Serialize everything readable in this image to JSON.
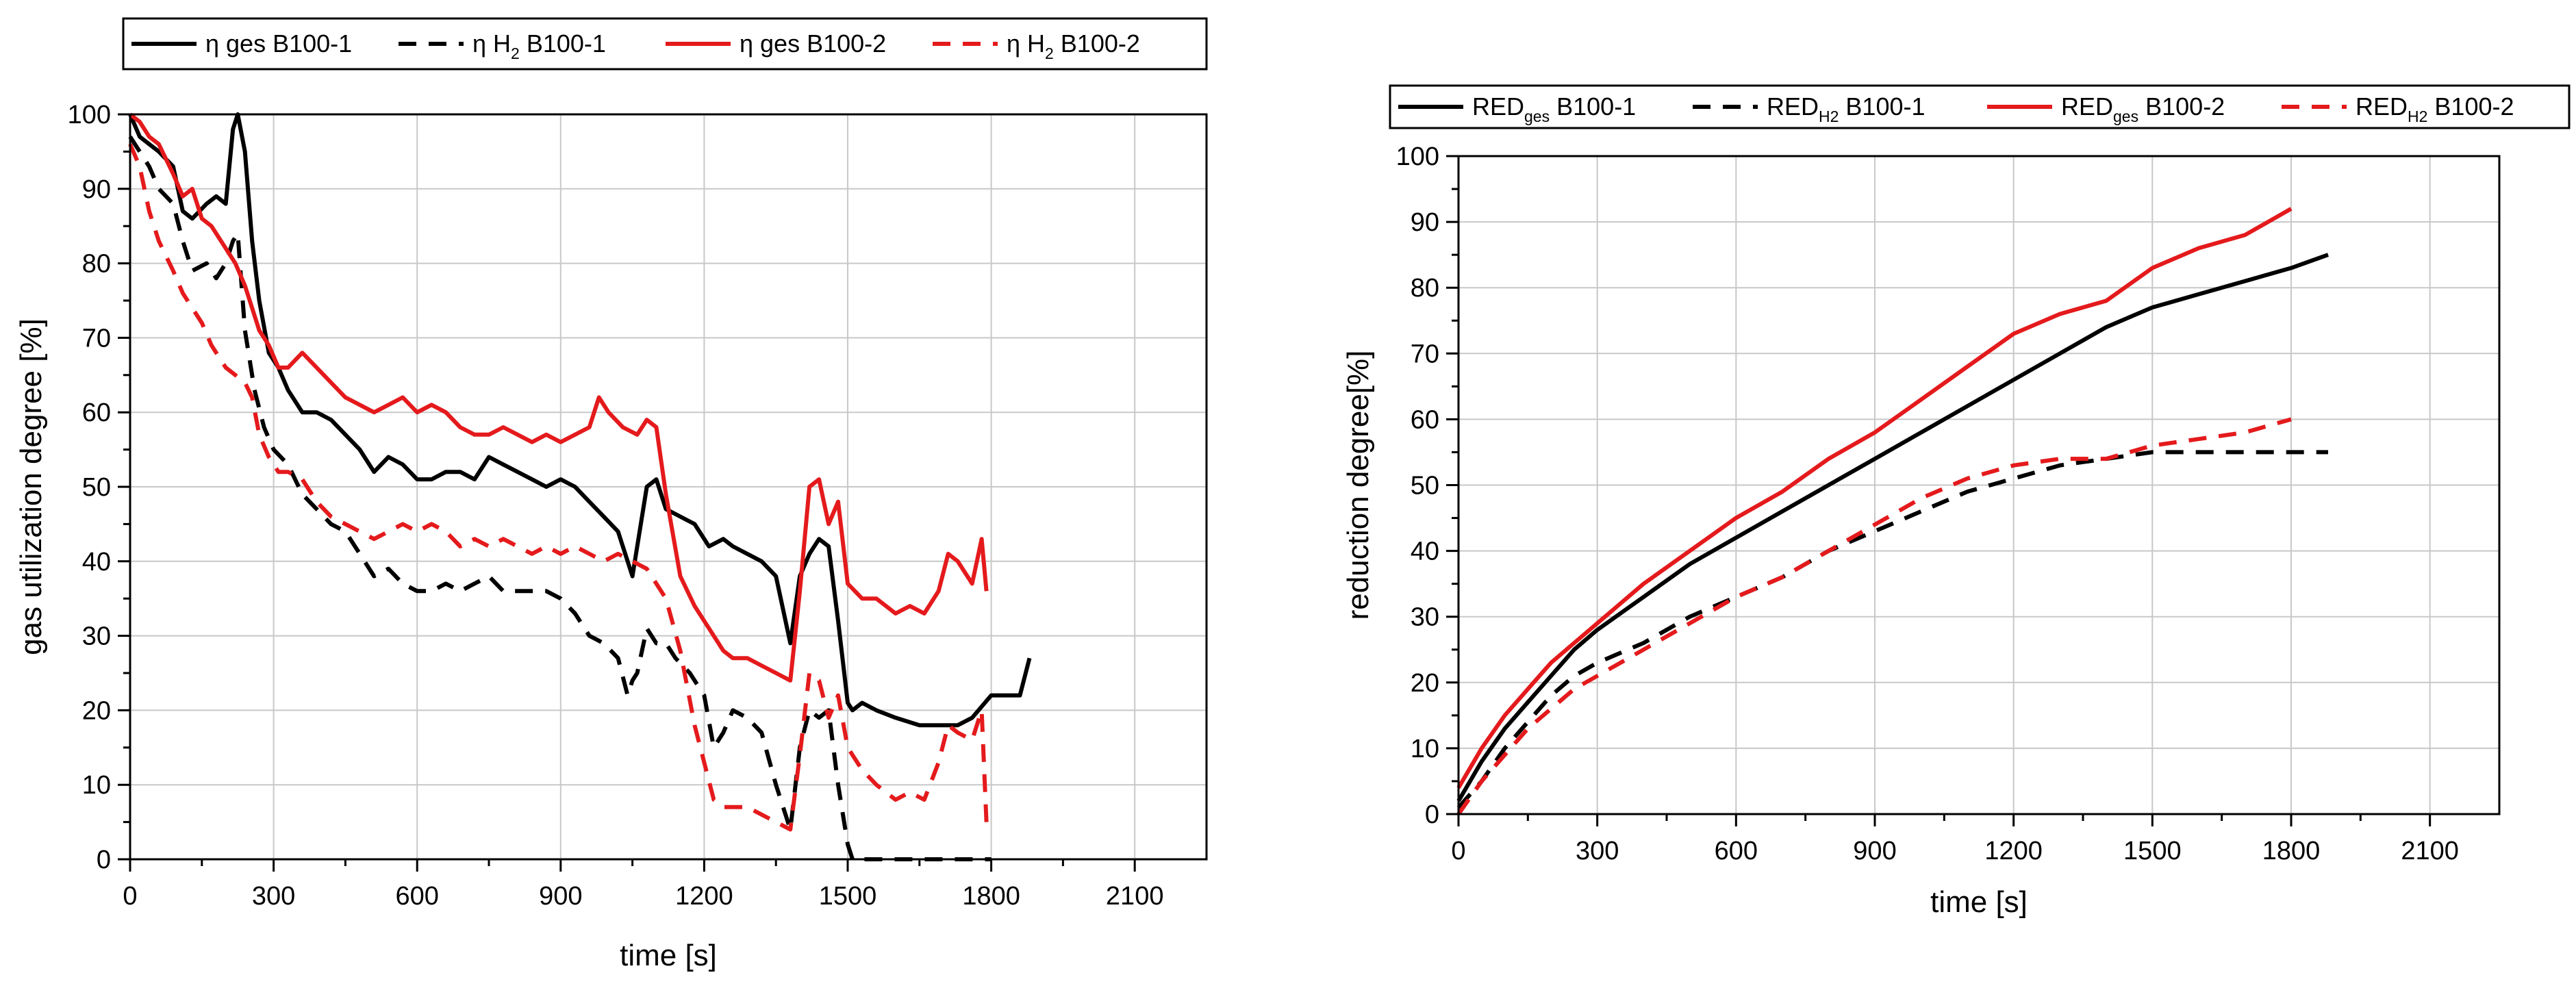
{
  "chart_data": [
    {
      "type": "line",
      "xlabel": "time [s]",
      "ylabel": "gas utilization degree [%]",
      "xlim": [
        0,
        2250
      ],
      "ylim": [
        0,
        100
      ],
      "xticks": [
        "0",
        "300",
        "600",
        "900",
        "1200",
        "1500",
        "1800",
        "2100"
      ],
      "yticks": [
        "0",
        "10",
        "20",
        "30",
        "40",
        "50",
        "60",
        "70",
        "80",
        "90",
        "100"
      ],
      "grid": true,
      "legend_position": "top",
      "series": [
        {
          "name": "η ges B100-1",
          "legend_main": "η ges B100-1",
          "legend_sub": "",
          "legend_tail": "",
          "color": "#000000",
          "dash": "solid",
          "x": [
            0,
            20,
            40,
            60,
            90,
            110,
            130,
            160,
            180,
            200,
            215,
            225,
            240,
            255,
            270,
            290,
            310,
            330,
            360,
            390,
            420,
            450,
            480,
            510,
            540,
            570,
            600,
            630,
            660,
            690,
            720,
            750,
            780,
            810,
            840,
            870,
            900,
            930,
            960,
            990,
            1020,
            1050,
            1080,
            1100,
            1120,
            1150,
            1180,
            1210,
            1240,
            1260,
            1290,
            1320,
            1350,
            1380,
            1400,
            1420,
            1440,
            1460,
            1480,
            1500,
            1510,
            1530,
            1560,
            1600,
            1650,
            1700,
            1730,
            1760,
            1800,
            1830,
            1860,
            1880
          ],
          "y": [
            100,
            97,
            96,
            95,
            93,
            87,
            86,
            88,
            89,
            88,
            98,
            100,
            95,
            83,
            75,
            68,
            66,
            63,
            60,
            60,
            59,
            57,
            55,
            52,
            54,
            53,
            51,
            51,
            52,
            52,
            51,
            54,
            53,
            52,
            51,
            50,
            51,
            50,
            48,
            46,
            44,
            38,
            50,
            51,
            47,
            46,
            45,
            42,
            43,
            42,
            41,
            40,
            38,
            29,
            38,
            41,
            43,
            42,
            32,
            21,
            20,
            21,
            20,
            19,
            18,
            18,
            18,
            19,
            22,
            22,
            22,
            27
          ]
        },
        {
          "name": "η H2 B100-1",
          "legend_main": "η H",
          "legend_sub": "2",
          "legend_tail": " B100-1",
          "color": "#000000",
          "dash": "dashed",
          "x": [
            0,
            20,
            40,
            60,
            90,
            110,
            130,
            160,
            180,
            200,
            215,
            225,
            240,
            260,
            280,
            300,
            330,
            360,
            390,
            420,
            450,
            480,
            510,
            540,
            570,
            600,
            630,
            660,
            690,
            720,
            750,
            780,
            810,
            840,
            870,
            900,
            930,
            960,
            990,
            1020,
            1040,
            1050,
            1060,
            1080,
            1100,
            1120,
            1140,
            1170,
            1200,
            1220,
            1240,
            1260,
            1290,
            1320,
            1350,
            1380,
            1400,
            1420,
            1440,
            1460,
            1480,
            1500,
            1510,
            1520,
            1560,
            1600,
            1700,
            1800
          ],
          "y": [
            97,
            95,
            93,
            90,
            88,
            83,
            79,
            80,
            78,
            80,
            83,
            84,
            71,
            63,
            58,
            55,
            53,
            49,
            47,
            45,
            44,
            41,
            38,
            39,
            37,
            36,
            36,
            37,
            36,
            37,
            38,
            36,
            36,
            36,
            36,
            35,
            33,
            30,
            29,
            27,
            22,
            24,
            25,
            31,
            29,
            29,
            27,
            25,
            22,
            15,
            17,
            20,
            19,
            17,
            10,
            4,
            15,
            20,
            19,
            20,
            10,
            2,
            0,
            0,
            0,
            0,
            0,
            0
          ]
        },
        {
          "name": "η ges B100-2",
          "legend_main": "η ges B100-2",
          "legend_sub": "",
          "legend_tail": "",
          "color": "#e41a1c",
          "dash": "solid",
          "x": [
            0,
            20,
            40,
            60,
            90,
            110,
            130,
            150,
            170,
            200,
            220,
            240,
            255,
            270,
            290,
            310,
            330,
            360,
            390,
            420,
            450,
            480,
            510,
            540,
            570,
            600,
            630,
            660,
            690,
            720,
            750,
            780,
            810,
            840,
            870,
            900,
            930,
            960,
            980,
            1000,
            1030,
            1060,
            1080,
            1100,
            1120,
            1150,
            1180,
            1210,
            1240,
            1260,
            1290,
            1320,
            1350,
            1380,
            1400,
            1420,
            1440,
            1460,
            1480,
            1500,
            1530,
            1560,
            1600,
            1630,
            1660,
            1690,
            1710,
            1730,
            1760,
            1780,
            1790
          ],
          "y": [
            100,
            99,
            97,
            96,
            92,
            89,
            90,
            86,
            85,
            82,
            80,
            77,
            74,
            71,
            69,
            66,
            66,
            68,
            66,
            64,
            62,
            61,
            60,
            61,
            62,
            60,
            61,
            60,
            58,
            57,
            57,
            58,
            57,
            56,
            57,
            56,
            57,
            58,
            62,
            60,
            58,
            57,
            59,
            58,
            49,
            38,
            34,
            31,
            28,
            27,
            27,
            26,
            25,
            24,
            36,
            50,
            51,
            45,
            48,
            37,
            35,
            35,
            33,
            34,
            33,
            36,
            41,
            40,
            37,
            43,
            36
          ]
        },
        {
          "name": "η H2 B100-2",
          "legend_main": "η H",
          "legend_sub": "2",
          "legend_tail": " B100-2",
          "color": "#e41a1c",
          "dash": "dashed",
          "x": [
            0,
            20,
            40,
            60,
            90,
            110,
            130,
            150,
            170,
            200,
            220,
            240,
            255,
            270,
            290,
            310,
            330,
            360,
            390,
            420,
            450,
            480,
            510,
            540,
            570,
            600,
            630,
            660,
            690,
            720,
            750,
            780,
            810,
            840,
            870,
            900,
            930,
            960,
            990,
            1020,
            1050,
            1080,
            1100,
            1120,
            1150,
            1180,
            1200,
            1220,
            1240,
            1260,
            1290,
            1320,
            1350,
            1380,
            1400,
            1420,
            1440,
            1460,
            1480,
            1500,
            1530,
            1560,
            1600,
            1630,
            1660,
            1690,
            1710,
            1730,
            1760,
            1780,
            1790
          ],
          "y": [
            96,
            93,
            87,
            83,
            79,
            76,
            74,
            72,
            69,
            66,
            65,
            64,
            62,
            57,
            54,
            52,
            52,
            51,
            48,
            46,
            45,
            44,
            43,
            44,
            45,
            44,
            45,
            44,
            42,
            43,
            42,
            43,
            42,
            41,
            42,
            41,
            42,
            41,
            40,
            41,
            40,
            39,
            37,
            35,
            28,
            18,
            13,
            8,
            7,
            7,
            7,
            6,
            5,
            4,
            14,
            25,
            24,
            19,
            22,
            15,
            12,
            10,
            8,
            9,
            8,
            13,
            18,
            17,
            16,
            20,
            5
          ]
        }
      ]
    },
    {
      "type": "line",
      "xlabel": "time [s]",
      "ylabel": "reduction degree[%]",
      "xlim": [
        0,
        2250
      ],
      "ylim": [
        0,
        100
      ],
      "xticks": [
        "0",
        "300",
        "600",
        "900",
        "1200",
        "1500",
        "1800",
        "2100"
      ],
      "yticks": [
        "0",
        "10",
        "20",
        "30",
        "40",
        "50",
        "60",
        "70",
        "80",
        "90",
        "100"
      ],
      "grid": true,
      "legend_position": "top",
      "series": [
        {
          "name": "RED ges B100-1",
          "legend_main": "RED",
          "legend_sub": "ges",
          "legend_tail": " B100-1",
          "color": "#000000",
          "dash": "solid",
          "x": [
            0,
            50,
            100,
            150,
            200,
            250,
            300,
            400,
            500,
            600,
            700,
            800,
            900,
            1000,
            1100,
            1200,
            1300,
            1400,
            1500,
            1600,
            1700,
            1800,
            1880
          ],
          "y": [
            2,
            8,
            13,
            17,
            21,
            25,
            28,
            33,
            38,
            42,
            46,
            50,
            54,
            58,
            62,
            66,
            70,
            74,
            77,
            79,
            81,
            83,
            85
          ]
        },
        {
          "name": "RED H2 B100-1",
          "legend_main": "RED",
          "legend_sub": "H2",
          "legend_tail": " B100-1",
          "color": "#000000",
          "dash": "dashed",
          "x": [
            0,
            50,
            100,
            150,
            200,
            250,
            300,
            400,
            500,
            600,
            700,
            800,
            900,
            1000,
            1100,
            1200,
            1300,
            1400,
            1500,
            1600,
            1700,
            1800,
            1880
          ],
          "y": [
            1,
            5,
            10,
            14,
            18,
            21,
            23,
            26,
            30,
            33,
            36,
            40,
            43,
            46,
            49,
            51,
            53,
            54,
            55,
            55,
            55,
            55,
            55
          ]
        },
        {
          "name": "RED ges B100-2",
          "legend_main": "RED",
          "legend_sub": "ges",
          "legend_tail": " B100-2",
          "color": "#e41a1c",
          "dash": "solid",
          "x": [
            0,
            50,
            100,
            150,
            200,
            250,
            300,
            400,
            500,
            600,
            700,
            800,
            900,
            1000,
            1100,
            1200,
            1300,
            1400,
            1500,
            1600,
            1700,
            1800
          ],
          "y": [
            4,
            10,
            15,
            19,
            23,
            26,
            29,
            35,
            40,
            45,
            49,
            54,
            58,
            63,
            68,
            73,
            76,
            78,
            83,
            86,
            88,
            92
          ]
        },
        {
          "name": "RED H2 B100-2",
          "legend_main": "RED",
          "legend_sub": "H2",
          "legend_tail": " B100-2",
          "color": "#e41a1c",
          "dash": "dashed",
          "x": [
            0,
            50,
            100,
            150,
            200,
            250,
            300,
            400,
            500,
            600,
            700,
            800,
            900,
            1000,
            1100,
            1200,
            1300,
            1400,
            1500,
            1600,
            1700,
            1800
          ],
          "y": [
            0,
            5,
            9,
            13,
            16,
            19,
            21,
            25,
            29,
            33,
            36,
            40,
            44,
            48,
            51,
            53,
            54,
            54,
            56,
            57,
            58,
            60
          ]
        }
      ]
    }
  ]
}
